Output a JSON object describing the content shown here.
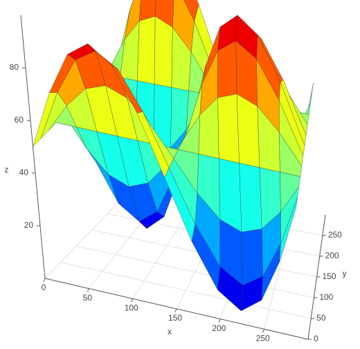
{
  "chart_data": {
    "type": "surface",
    "colorscale": "jet",
    "grid": true,
    "xlabel": "x",
    "ylabel": "y",
    "zlabel": "z",
    "x": [
      0,
      25,
      50,
      75,
      100,
      125,
      150,
      175,
      200,
      225,
      250,
      275,
      300
    ],
    "y": [
      0,
      25,
      50,
      75,
      100,
      125,
      150,
      175,
      200,
      225,
      250,
      275,
      300
    ],
    "z": [
      [
        50,
        72.5,
        89,
        95,
        89,
        72.5,
        50,
        27.5,
        11,
        5,
        11,
        27.5,
        50
      ],
      [
        50,
        69.5,
        83.75,
        89,
        83.75,
        69.5,
        50,
        30.5,
        16.25,
        11,
        16.25,
        30.5,
        50
      ],
      [
        50,
        61.25,
        69.5,
        72.5,
        69.5,
        61.25,
        50,
        38.75,
        30.5,
        27.5,
        30.5,
        38.75,
        50
      ],
      [
        50,
        50,
        50,
        50,
        50,
        50,
        50,
        50,
        50,
        50,
        50,
        50,
        50
      ],
      [
        50,
        38.75,
        30.5,
        27.5,
        30.5,
        38.75,
        50,
        61.25,
        69.5,
        72.5,
        69.5,
        61.25,
        50
      ],
      [
        50,
        30.5,
        16.25,
        11,
        16.25,
        30.5,
        50,
        69.5,
        83.75,
        89,
        83.75,
        69.5,
        50
      ],
      [
        50,
        27.5,
        11,
        5,
        11,
        27.5,
        50,
        72.5,
        89,
        95,
        89,
        72.5,
        50
      ],
      [
        50,
        30.5,
        16.25,
        11,
        16.25,
        30.5,
        50,
        69.5,
        83.75,
        89,
        83.75,
        69.5,
        50
      ],
      [
        50,
        38.75,
        30.5,
        27.5,
        30.5,
        38.75,
        50,
        61.25,
        69.5,
        72.5,
        69.5,
        61.25,
        50
      ],
      [
        50,
        50,
        50,
        50,
        50,
        50,
        50,
        50,
        50,
        50,
        50,
        50,
        50
      ],
      [
        50,
        61.25,
        69.5,
        72.5,
        69.5,
        61.25,
        50,
        38.75,
        30.5,
        27.5,
        30.5,
        38.75,
        50
      ],
      [
        50,
        69.5,
        83.75,
        89,
        83.75,
        69.5,
        50,
        30.5,
        16.25,
        11,
        16.25,
        30.5,
        50
      ],
      [
        50,
        72.5,
        89,
        95,
        89,
        72.5,
        50,
        27.5,
        11,
        5,
        11,
        27.5,
        50
      ]
    ],
    "xlim": [
      0,
      300
    ],
    "ylim": [
      0,
      300
    ],
    "zlim": [
      0,
      100
    ],
    "xticks": [
      0,
      50,
      100,
      150,
      200,
      250
    ],
    "yticks": [
      0,
      50,
      100,
      150,
      200,
      250
    ],
    "zticks": [
      20,
      40,
      60,
      80
    ]
  }
}
